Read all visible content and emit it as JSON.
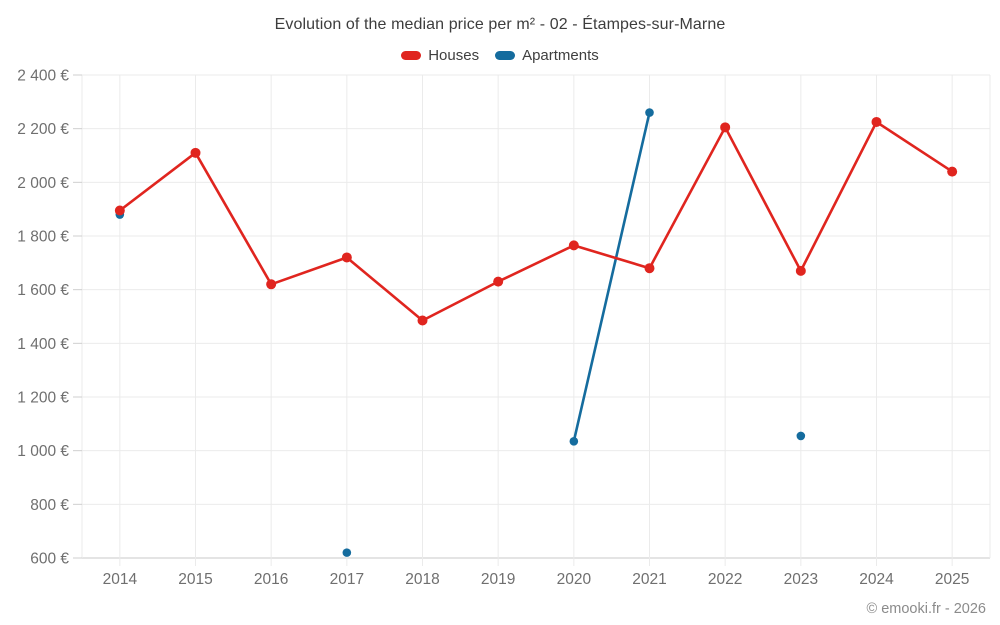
{
  "chart": {
    "title": "Evolution of the median price per m² - 02 - Étampes-sur-Marne",
    "footer": "© emooki.fr - 2026"
  },
  "chart_data": {
    "type": "line",
    "title": "Evolution of the median price per m² - 02 - Étampes-sur-Marne",
    "categories": [
      "2014",
      "2015",
      "2016",
      "2017",
      "2018",
      "2019",
      "2020",
      "2021",
      "2022",
      "2023",
      "2024",
      "2025"
    ],
    "series": [
      {
        "name": "Houses",
        "color": "#e0251f",
        "values": [
          1895,
          2110,
          1620,
          1720,
          1485,
          1630,
          1765,
          1680,
          2205,
          1670,
          2225,
          2040
        ]
      },
      {
        "name": "Apartments",
        "color": "#156c9e",
        "values": [
          1880,
          null,
          null,
          620,
          null,
          null,
          1035,
          2260,
          null,
          1055,
          null,
          null
        ]
      }
    ],
    "xlabel": "",
    "ylabel": "",
    "ylim": [
      600,
      2400
    ],
    "y_tick_values": [
      2400,
      2200,
      2000,
      1800,
      1600,
      1400,
      1200,
      1000,
      800,
      600
    ],
    "y_tick_labels": [
      "2 400 €",
      "2 200 €",
      "2 000 €",
      "1 800 €",
      "1 600 €",
      "1 400 €",
      "1 200 €",
      "1 000 €",
      "800 €",
      "600 €"
    ],
    "grid": true,
    "legend_position": "top",
    "colors": {
      "grid_line": "#ebebeb",
      "axis_line": "#c9c9c9",
      "tick_mark": "#cfcfcf",
      "axis_text": "#6f6f6f",
      "title_text": "#3d3d3d",
      "footer_text": "#8b8b8b",
      "background": "#ffffff"
    }
  }
}
